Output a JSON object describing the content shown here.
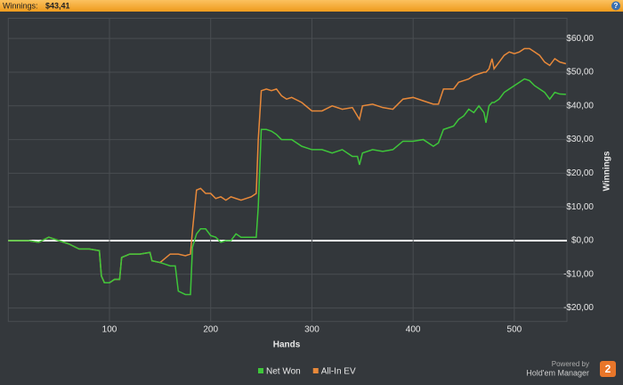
{
  "header": {
    "label": "Winnings:",
    "value": "$43,41",
    "help": "?"
  },
  "branding": {
    "powered_by": "Powered by",
    "product": "Hold'em Manager",
    "logo": "2"
  },
  "chart_data": {
    "type": "line",
    "x_label": "Hands",
    "y_label": "Winnings",
    "x": [
      0,
      10,
      20,
      30,
      40,
      50,
      60,
      70,
      80,
      90,
      92,
      95,
      100,
      105,
      110,
      112,
      120,
      130,
      140,
      142,
      150,
      160,
      165,
      168,
      175,
      180,
      182,
      186,
      190,
      195,
      200,
      205,
      210,
      215,
      220,
      225,
      230,
      240,
      245,
      247,
      250,
      255,
      260,
      265,
      270,
      275,
      280,
      290,
      300,
      310,
      320,
      330,
      340,
      345,
      347,
      350,
      360,
      370,
      380,
      390,
      400,
      410,
      420,
      425,
      430,
      440,
      445,
      450,
      455,
      460,
      465,
      470,
      472,
      475,
      478,
      480,
      485,
      490,
      495,
      500,
      505,
      510,
      515,
      520,
      525,
      530,
      535,
      540,
      545,
      551
    ],
    "series": [
      {
        "name": "Net Won",
        "color": "#3ec63a",
        "values": [
          0,
          0,
          0,
          -0.5,
          1,
          0,
          -1,
          -2.5,
          -2.5,
          -3,
          -10.5,
          -12.5,
          -12.5,
          -11.5,
          -11.5,
          -5,
          -4,
          -4,
          -3.5,
          -6,
          -6.5,
          -7.5,
          -7.5,
          -15,
          -16,
          -16,
          -2,
          2,
          3.5,
          3.5,
          1.5,
          1,
          -0.5,
          0,
          0,
          2,
          1,
          1,
          1,
          10,
          33,
          33,
          32.5,
          31.5,
          30,
          30,
          30,
          28,
          27,
          27,
          26,
          27,
          25,
          25,
          22.5,
          26,
          27,
          26.5,
          27,
          29.5,
          29.5,
          30,
          28,
          29,
          33,
          34,
          36,
          37,
          39,
          38,
          40,
          38,
          35,
          40,
          41,
          41,
          42,
          44,
          45,
          46,
          47,
          48,
          47.5,
          46,
          45,
          44,
          42,
          44,
          43.5,
          43.4
        ]
      },
      {
        "name": "All-In EV",
        "color": "#e8893a",
        "values": [
          0,
          0,
          0,
          -0.5,
          1,
          0,
          -1,
          -2.5,
          -2.5,
          -3,
          -10.5,
          -12.5,
          -12.5,
          -11.5,
          -11.5,
          -5,
          -4,
          -4,
          -3.5,
          -6,
          -6.5,
          -4,
          -4,
          -4,
          -4.5,
          -4,
          3,
          15,
          15.5,
          14,
          14,
          12.5,
          13,
          12,
          13,
          12.5,
          12,
          13,
          14,
          30,
          44.5,
          45,
          44.5,
          45,
          43,
          42,
          42.5,
          41,
          38.5,
          38.5,
          40,
          39,
          39.5,
          37,
          36,
          40,
          40.5,
          39.5,
          39,
          42,
          42.5,
          41.5,
          40.5,
          40.5,
          45,
          45,
          47,
          47.5,
          48,
          49,
          49.5,
          50,
          50,
          51,
          54,
          51,
          53,
          55,
          56,
          55.5,
          56,
          57,
          57,
          56,
          55,
          53,
          52,
          54,
          53,
          52.5
        ]
      }
    ],
    "xlim": [
      0,
      552
    ],
    "xticks": [
      100,
      200,
      300,
      400,
      500
    ],
    "ylim": [
      -24,
      66
    ],
    "yticks": [
      {
        "value": -20,
        "label": "-$20,00"
      },
      {
        "value": -10,
        "label": "-$10,00"
      },
      {
        "value": 0,
        "label": "$0,00"
      },
      {
        "value": 10,
        "label": "$10,00"
      },
      {
        "value": 20,
        "label": "$20,00"
      },
      {
        "value": 30,
        "label": "$30,00"
      },
      {
        "value": 40,
        "label": "$40,00"
      },
      {
        "value": 50,
        "label": "$50,00"
      },
      {
        "value": 60,
        "label": "$60,00"
      }
    ],
    "grid": true
  }
}
